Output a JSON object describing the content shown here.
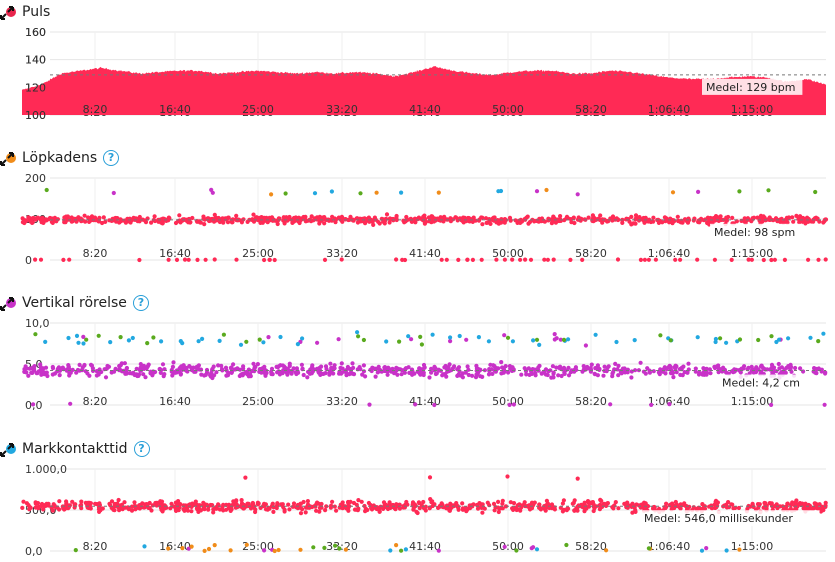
{
  "colors": {
    "red": "#ff2a55",
    "orange": "#f08c1a",
    "magenta": "#c832c8",
    "blue": "#22a8e0",
    "green": "#5aaa1e",
    "help": "#2a9fd8"
  },
  "x_ticks": [
    "8:20",
    "16:40",
    "25:00",
    "33:20",
    "41:40",
    "50:00",
    "58:20",
    "1:06:40",
    "1:15:00"
  ],
  "panels": [
    {
      "key": "puls",
      "title": "Puls",
      "legend_color": "#ff2a55",
      "help": false,
      "y_ticks": [
        "160",
        "140",
        "120",
        "100"
      ],
      "average_label": "Medel: 129 bpm"
    },
    {
      "key": "cadence",
      "title": "Löpkadens",
      "legend_color": "#f08c1a",
      "help": true,
      "help_symbol": "?",
      "y_ticks": [
        "200",
        "100",
        "0"
      ],
      "average_label": "Medel: 98 spm"
    },
    {
      "key": "vertical",
      "title": "Vertikal rörelse",
      "legend_color": "#c832c8",
      "help": true,
      "help_symbol": "?",
      "y_ticks": [
        "10,0",
        "5,0",
        "0,0"
      ],
      "average_label": "Medel: 4,2 cm"
    },
    {
      "key": "gct",
      "title": "Markkontakttid",
      "legend_color": "#22a8e0",
      "help": true,
      "help_symbol": "?",
      "y_ticks": [
        "1.000,0",
        "500,0",
        "0,0"
      ],
      "average_label": "Medel: 546,0 millisekunder"
    }
  ],
  "chart_data": [
    {
      "type": "area",
      "ylim": [
        100,
        160
      ],
      "average": 129,
      "x": [
        0,
        2,
        4,
        6,
        8,
        10,
        12,
        14,
        16,
        18,
        20,
        22,
        24,
        26,
        28,
        30,
        32,
        34,
        36,
        38,
        40,
        42,
        44,
        46,
        48,
        50,
        52,
        54,
        56,
        58,
        60,
        62,
        64,
        66,
        68,
        70,
        72,
        74,
        76,
        78,
        80,
        82
      ],
      "values": [
        118,
        122,
        130,
        132,
        134,
        132,
        130,
        131,
        132,
        132,
        130,
        131,
        132,
        131,
        130,
        131,
        130,
        131,
        130,
        128,
        131,
        135,
        132,
        130,
        129,
        131,
        132,
        132,
        130,
        130,
        132,
        131,
        129,
        127,
        126,
        126,
        127,
        128,
        127,
        124,
        126,
        122
      ]
    },
    {
      "type": "scatter",
      "ylim": [
        0,
        200
      ],
      "average": 98
    },
    {
      "type": "scatter",
      "ylim": [
        0,
        10
      ],
      "average": 4.2
    },
    {
      "type": "scatter",
      "ylim": [
        0,
        1000
      ],
      "average": 546
    }
  ]
}
